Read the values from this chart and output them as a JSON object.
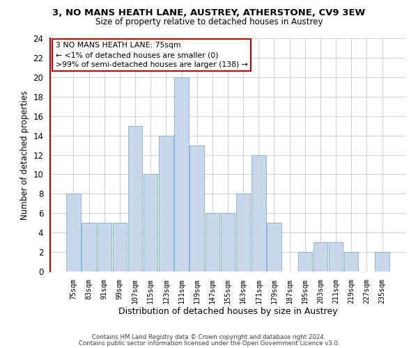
{
  "title": "3, NO MANS HEATH LANE, AUSTREY, ATHERSTONE, CV9 3EW",
  "subtitle": "Size of property relative to detached houses in Austrey",
  "xlabel": "Distribution of detached houses by size in Austrey",
  "ylabel": "Number of detached properties",
  "bar_color": "#c8d8ea",
  "bar_edge_color": "#7bafd4",
  "categories": [
    "75sqm",
    "83sqm",
    "91sqm",
    "99sqm",
    "107sqm",
    "115sqm",
    "123sqm",
    "131sqm",
    "139sqm",
    "147sqm",
    "155sqm",
    "163sqm",
    "171sqm",
    "179sqm",
    "187sqm",
    "195sqm",
    "203sqm",
    "211sqm",
    "219sqm",
    "227sqm",
    "235sqm"
  ],
  "values": [
    8,
    5,
    5,
    5,
    15,
    10,
    14,
    20,
    13,
    6,
    6,
    8,
    12,
    5,
    0,
    2,
    3,
    3,
    2,
    0,
    2
  ],
  "ylim": [
    0,
    24
  ],
  "yticks": [
    0,
    2,
    4,
    6,
    8,
    10,
    12,
    14,
    16,
    18,
    20,
    22,
    24
  ],
  "annotation_line1": "3 NO MANS HEATH LANE: 75sqm",
  "annotation_line2": "← <1% of detached houses are smaller (0)",
  "annotation_line3": ">99% of semi-detached houses are larger (138) →",
  "annotation_box_color": "#cc0000",
  "footer_line1": "Contains HM Land Registry data © Crown copyright and database right 2024.",
  "footer_line2": "Contains public sector information licensed under the Open Government Licence v3.0.",
  "background_color": "#ffffff",
  "grid_color": "#c8c8c8"
}
